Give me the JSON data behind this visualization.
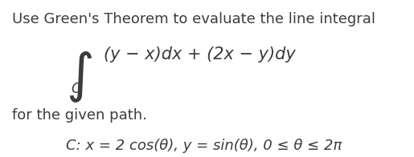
{
  "background_color": "#ffffff",
  "text_color": "#3c3c3c",
  "line1": "Use Green's Theorem to evaluate the line integral",
  "integral_expr": "(y − x)dx + (2x − y)dy",
  "subscript_C": "C",
  "line3": "for the given path.",
  "line4": "C: x = 2 cos(θ), y = sin(θ), 0 ≤ θ ≤ 2π",
  "font_size_main": 13,
  "font_size_integral": 15,
  "font_size_symbol": 28,
  "font_size_path": 13
}
